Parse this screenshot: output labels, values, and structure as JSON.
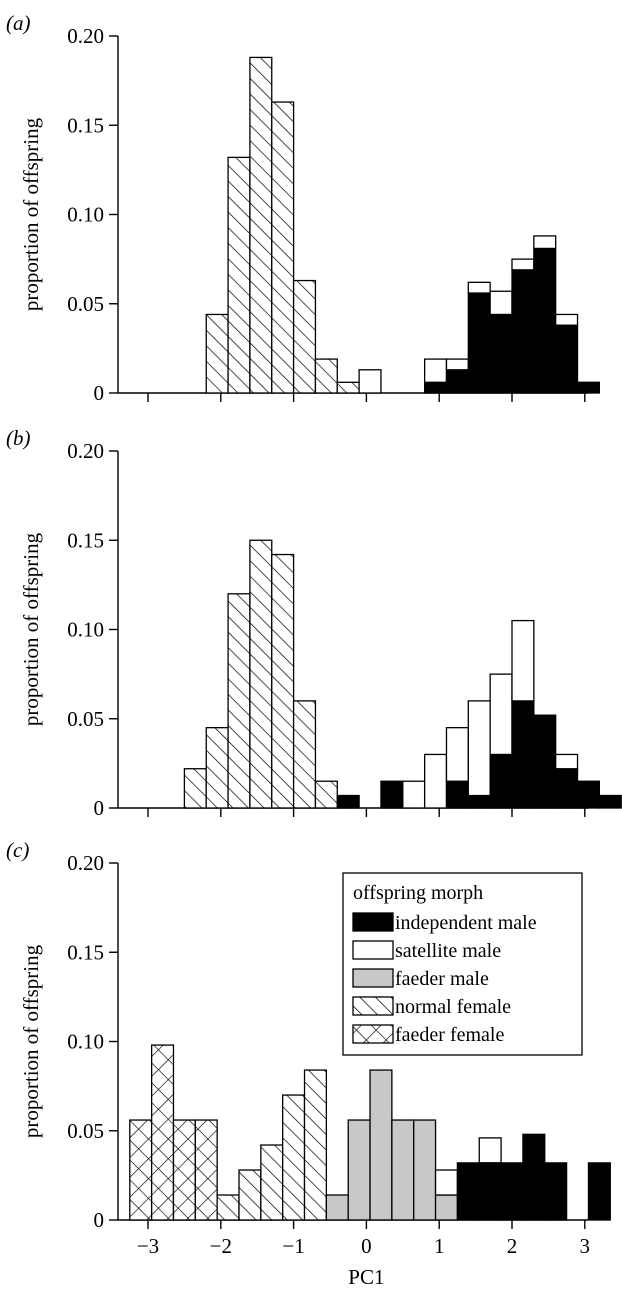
{
  "chart_data": [
    {
      "panel_label": "(a)",
      "type": "bar",
      "bin_width": 0.3,
      "xlim": [
        -3.3,
        3.5
      ],
      "ylim": [
        0,
        0.2
      ],
      "yticks": [
        "0",
        "0.05",
        "0.10",
        "0.15",
        "0.20"
      ],
      "ytick_values": [
        0,
        0.05,
        0.1,
        0.15,
        0.2
      ],
      "xticks": [
        -3,
        -2,
        -1,
        0,
        1,
        2,
        3
      ],
      "ylabel": "proportion of offspring",
      "xlabel": "",
      "show_xtick_labels": false,
      "series": [
        {
          "morph": "normal_female",
          "bins": [
            {
              "x0": -2.2,
              "v": 0.044
            },
            {
              "x0": -1.9,
              "v": 0.132
            },
            {
              "x0": -1.6,
              "v": 0.188
            },
            {
              "x0": -1.3,
              "v": 0.163
            },
            {
              "x0": -1.0,
              "v": 0.063
            },
            {
              "x0": -0.7,
              "v": 0.019
            },
            {
              "x0": -0.4,
              "v": 0.006
            }
          ]
        },
        {
          "morph": "satellite_male",
          "bins": [
            {
              "x0": -0.1,
              "v": 0.013
            }
          ]
        },
        {
          "morph": "stacked_independent_satellite",
          "bins": [
            {
              "x0": 0.8,
              "ind": 0.006,
              "sat": 0.013
            },
            {
              "x0": 1.1,
              "ind": 0.013,
              "sat": 0.006
            },
            {
              "x0": 1.4,
              "ind": 0.056,
              "sat": 0.006
            },
            {
              "x0": 1.7,
              "ind": 0.044,
              "sat": 0.013
            },
            {
              "x0": 2.0,
              "ind": 0.069,
              "sat": 0.006
            },
            {
              "x0": 2.3,
              "ind": 0.081,
              "sat": 0.007
            },
            {
              "x0": 2.6,
              "ind": 0.038,
              "sat": 0.006
            },
            {
              "x0": 2.9,
              "ind": 0.006,
              "sat": 0
            }
          ]
        }
      ]
    },
    {
      "panel_label": "(b)",
      "type": "bar",
      "bin_width": 0.3,
      "xlim": [
        -3.3,
        3.5
      ],
      "ylim": [
        0,
        0.2
      ],
      "yticks": [
        "0",
        "0.05",
        "0.10",
        "0.15",
        "0.20"
      ],
      "ytick_values": [
        0,
        0.05,
        0.1,
        0.15,
        0.2
      ],
      "xticks": [
        -3,
        -2,
        -1,
        0,
        1,
        2,
        3
      ],
      "ylabel": "proportion of offspring",
      "xlabel": "",
      "show_xtick_labels": false,
      "series": [
        {
          "morph": "normal_female",
          "bins": [
            {
              "x0": -2.5,
              "v": 0.022
            },
            {
              "x0": -2.2,
              "v": 0.045
            },
            {
              "x0": -1.9,
              "v": 0.12
            },
            {
              "x0": -1.6,
              "v": 0.15
            },
            {
              "x0": -1.3,
              "v": 0.142
            },
            {
              "x0": -1.0,
              "v": 0.06
            },
            {
              "x0": -0.7,
              "v": 0.015
            }
          ]
        },
        {
          "morph": "independent_male",
          "bins": [
            {
              "x0": -0.4,
              "v": 0.007
            }
          ]
        },
        {
          "morph": "stacked_independent_satellite",
          "bins": [
            {
              "x0": 0.2,
              "ind": 0.015,
              "sat": 0
            },
            {
              "x0": 0.5,
              "ind": 0,
              "sat": 0.015
            },
            {
              "x0": 0.8,
              "ind": 0,
              "sat": 0.03
            },
            {
              "x0": 1.1,
              "ind": 0.015,
              "sat": 0.03
            },
            {
              "x0": 1.4,
              "ind": 0.007,
              "sat": 0.053
            },
            {
              "x0": 1.7,
              "ind": 0.03,
              "sat": 0.045
            },
            {
              "x0": 2.0,
              "ind": 0.06,
              "sat": 0.045
            },
            {
              "x0": 2.3,
              "ind": 0.052,
              "sat": 0
            },
            {
              "x0": 2.6,
              "ind": 0.022,
              "sat": 0.008
            },
            {
              "x0": 2.9,
              "ind": 0.015,
              "sat": 0
            },
            {
              "x0": 3.2,
              "ind": 0.007,
              "sat": 0
            }
          ]
        }
      ]
    },
    {
      "panel_label": "(c)",
      "type": "bar",
      "bin_width": 0.3,
      "xlim": [
        -3.3,
        3.5
      ],
      "ylim": [
        0,
        0.2
      ],
      "yticks": [
        "0",
        "0.05",
        "0.10",
        "0.15",
        "0.20"
      ],
      "ytick_values": [
        0,
        0.05,
        0.1,
        0.15,
        0.2
      ],
      "xticks": [
        -3,
        -2,
        -1,
        0,
        1,
        2,
        3
      ],
      "xtick_labels": [
        "−3",
        "−2",
        "−1",
        "0",
        "1",
        "2",
        "3"
      ],
      "ylabel": "proportion of offspring",
      "xlabel": "PC1",
      "show_xtick_labels": true,
      "series": [
        {
          "morph": "faeder_female",
          "bins": [
            {
              "x0": -3.25,
              "v": 0.056
            },
            {
              "x0": -2.95,
              "v": 0.098
            },
            {
              "x0": -2.65,
              "v": 0.056
            },
            {
              "x0": -2.35,
              "v": 0.056
            }
          ]
        },
        {
          "morph": "normal_female",
          "bins": [
            {
              "x0": -2.05,
              "v": 0.014
            },
            {
              "x0": -1.75,
              "v": 0.028
            },
            {
              "x0": -1.45,
              "v": 0.042
            },
            {
              "x0": -1.15,
              "v": 0.07
            },
            {
              "x0": -0.85,
              "v": 0.084
            }
          ]
        },
        {
          "morph": "faeder_male",
          "bins": [
            {
              "x0": -0.55,
              "v": 0.014
            },
            {
              "x0": -0.25,
              "v": 0.056
            },
            {
              "x0": 0.05,
              "v": 0.084
            },
            {
              "x0": 0.35,
              "v": 0.056
            },
            {
              "x0": 0.65,
              "v": 0.056
            },
            {
              "x0": 0.95,
              "v": 0.014
            }
          ]
        },
        {
          "morph": "satellite_male",
          "bins": [
            {
              "x0": 0.95,
              "v": 0.028,
              "base": 0.014
            },
            {
              "x0": 1.55,
              "v": 0.046,
              "base": 0.032
            }
          ]
        },
        {
          "morph": "independent_male",
          "bins": [
            {
              "x0": 1.25,
              "v": 0.032
            },
            {
              "x0": 1.55,
              "v": 0.032
            },
            {
              "x0": 1.85,
              "v": 0.032
            },
            {
              "x0": 2.15,
              "v": 0.048
            },
            {
              "x0": 2.45,
              "v": 0.032
            },
            {
              "x0": 3.05,
              "v": 0.032
            }
          ]
        }
      ],
      "legend": {
        "title": "offspring morph",
        "placement": "top-right",
        "entries": [
          {
            "key": "independent_male",
            "label": "independent male"
          },
          {
            "key": "satellite_male",
            "label": "satellite male"
          },
          {
            "key": "faeder_male",
            "label": "faeder male"
          },
          {
            "key": "normal_female",
            "label": "normal female"
          },
          {
            "key": "faeder_female",
            "label": "faeder female"
          }
        ]
      }
    }
  ],
  "colors": {
    "independent_male": "#000000",
    "satellite_male": "#ffffff",
    "faeder_male": "#c8c8c8",
    "normal_female": "#ffffff",
    "faeder_female": "#ffffff",
    "edge": "#000000"
  }
}
